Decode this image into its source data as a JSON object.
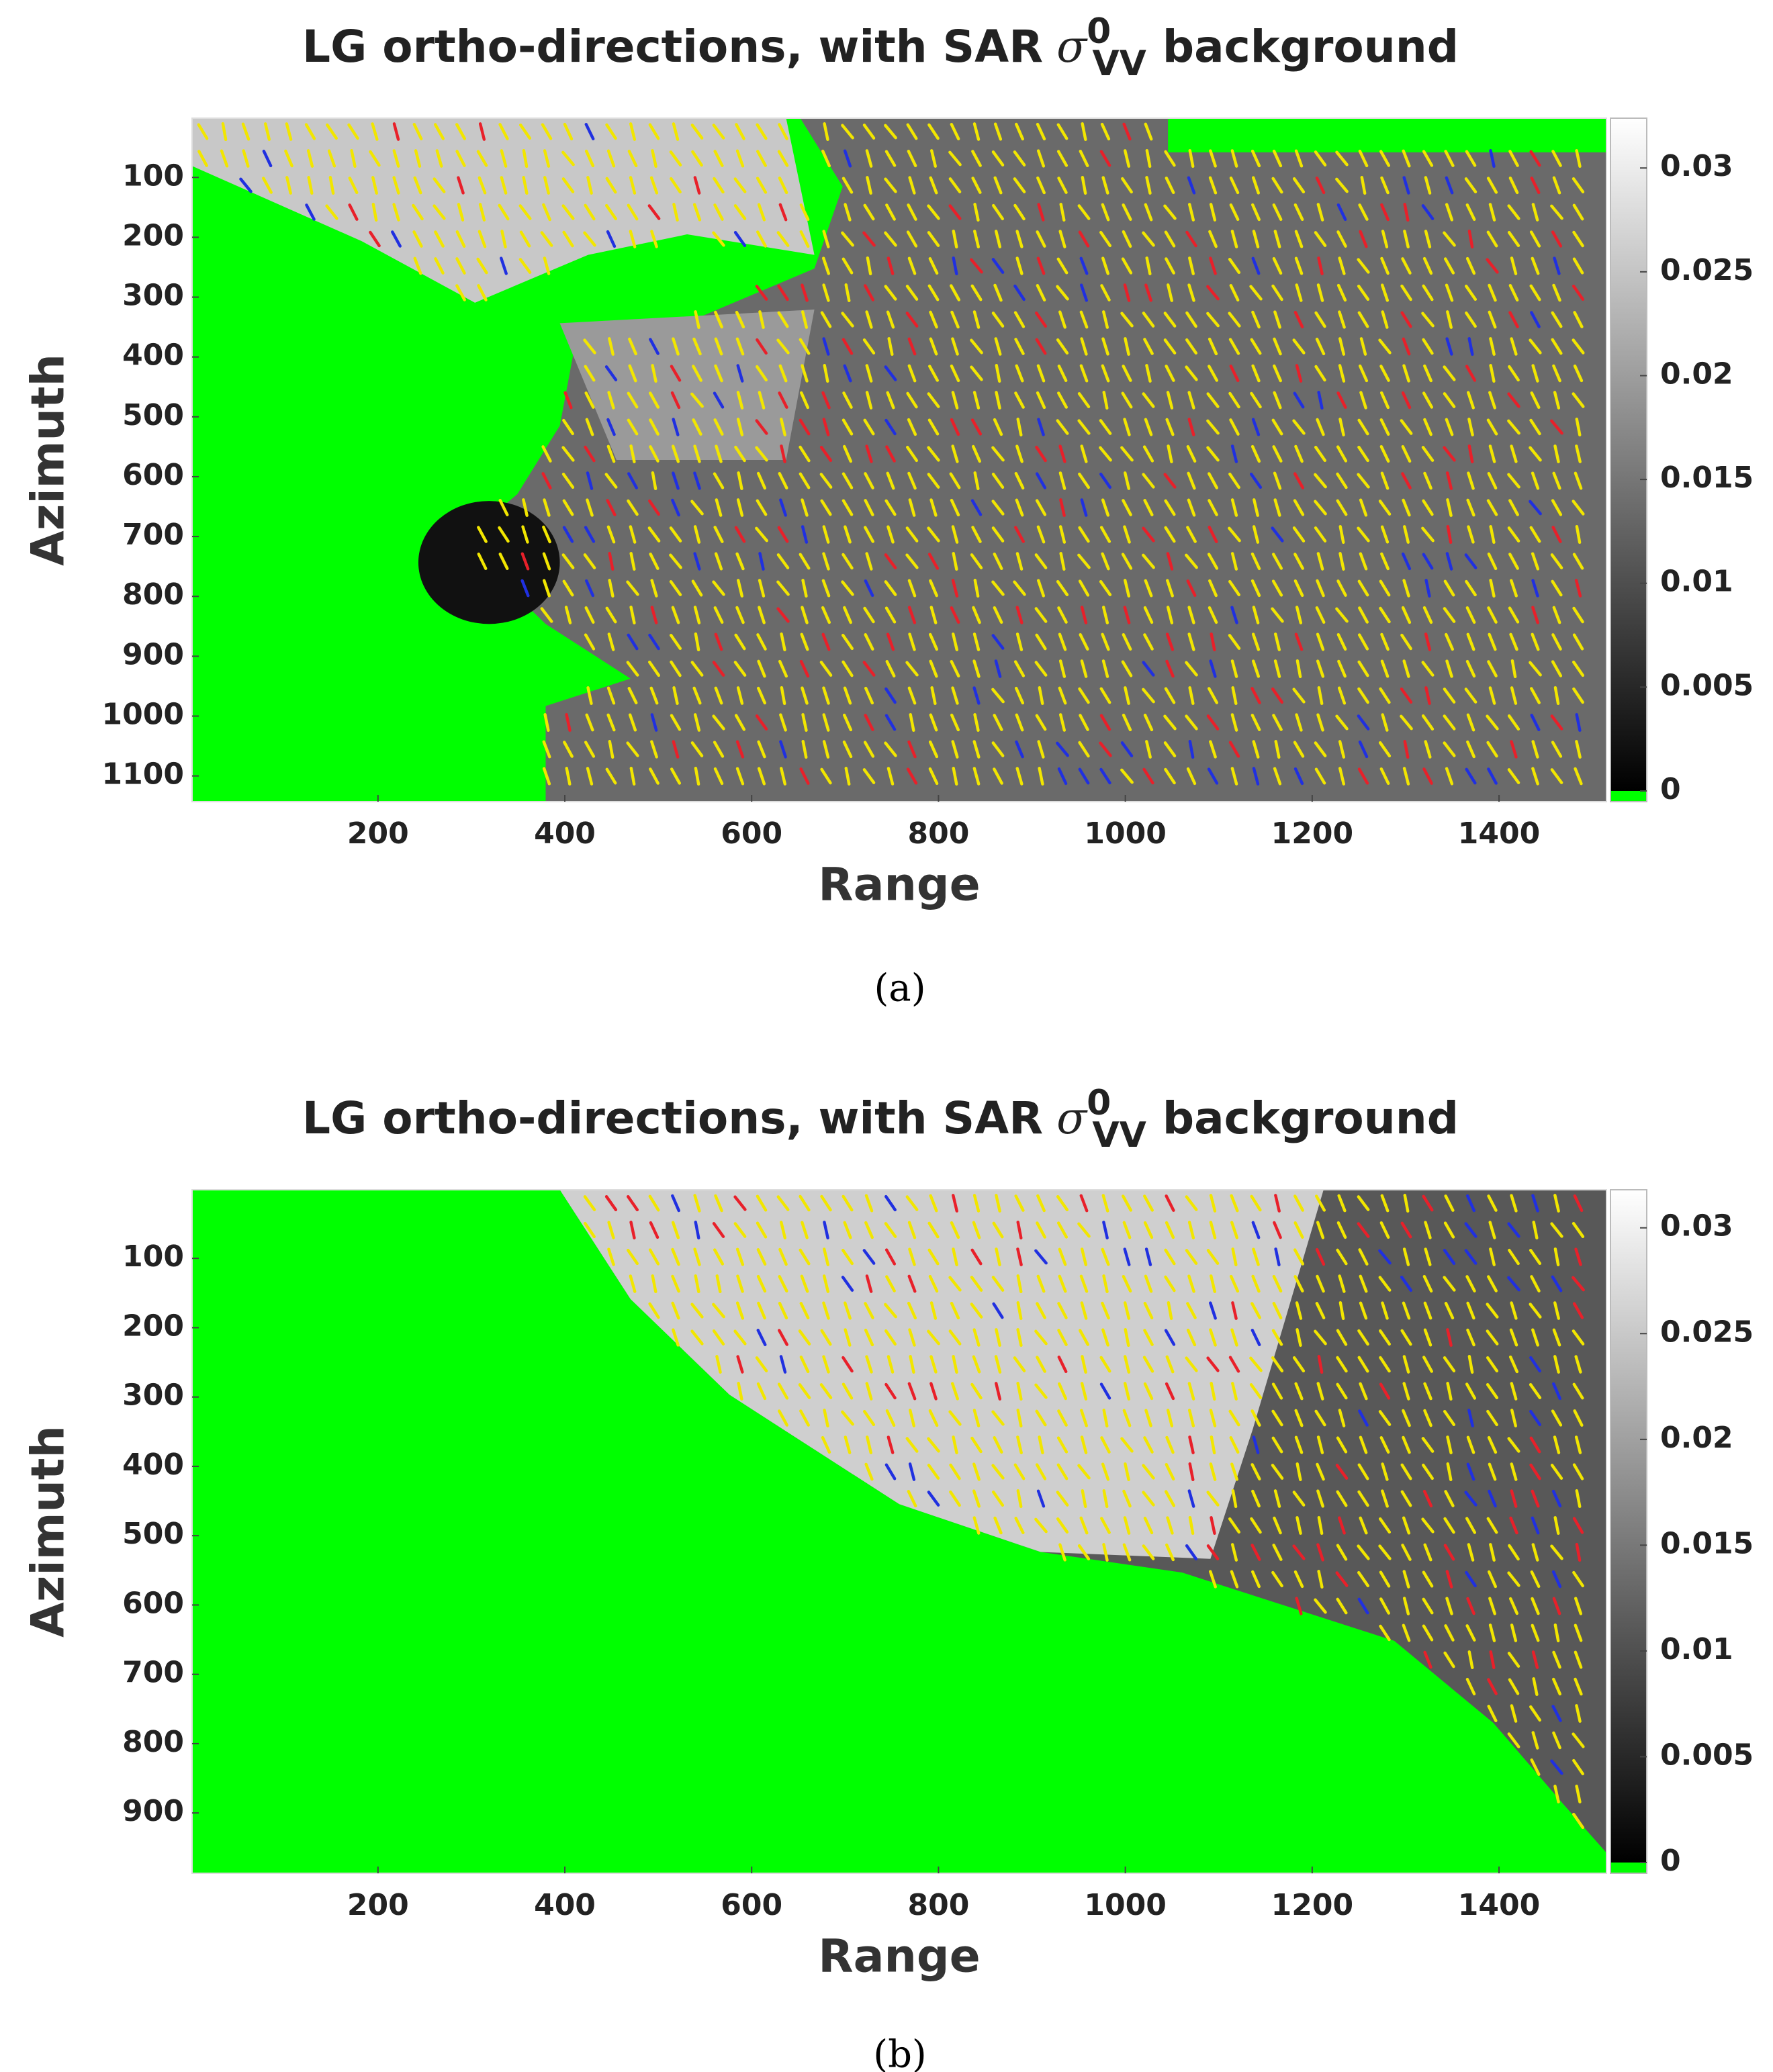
{
  "chart_data": [
    {
      "type": "heatmap",
      "title": "LG ortho-directions, with SAR",
      "title_symbol": "σ",
      "title_superscript": "0",
      "title_subscript": "VV",
      "title_suffix": "background",
      "x_label": "Range",
      "y_label": "Azimuth",
      "caption": "(a)",
      "xlim": [
        1,
        1515
      ],
      "xticks": [
        200,
        400,
        600,
        800,
        1000,
        1200,
        1400
      ],
      "ylim": [
        1,
        1143
      ],
      "y_inverted": true,
      "yticks": [
        100,
        200,
        300,
        400,
        500,
        600,
        700,
        800,
        900,
        1000,
        1100
      ],
      "colorbar_lim": [
        0,
        0.0324
      ],
      "colorbar_ticks": [
        0,
        0.005,
        0.01,
        0.015,
        0.02,
        0.025,
        0.03
      ],
      "colormap": "gray",
      "nan_color": "#00ff00",
      "arrow_colors": [
        "#f2e600",
        "#e8202a",
        "#2030e0"
      ]
    },
    {
      "type": "heatmap",
      "title": "LG ortho-directions, with SAR",
      "title_symbol": "σ",
      "title_superscript": "0",
      "title_subscript": "VV",
      "title_suffix": "background",
      "x_label": "Range",
      "y_label": "Azimuth",
      "caption": "(b)",
      "xlim": [
        1,
        1515
      ],
      "xticks": [
        200,
        400,
        600,
        800,
        1000,
        1200,
        1400
      ],
      "ylim": [
        1,
        987
      ],
      "y_inverted": true,
      "yticks": [
        100,
        200,
        300,
        400,
        500,
        600,
        700,
        800,
        900
      ],
      "colorbar_lim": [
        0,
        0.0318
      ],
      "colorbar_ticks": [
        0,
        0.005,
        0.01,
        0.015,
        0.02,
        0.025,
        0.03
      ],
      "colormap": "gray",
      "nan_color": "#00ff00",
      "arrow_colors": [
        "#f2e600",
        "#e8202a",
        "#2030e0"
      ]
    }
  ]
}
